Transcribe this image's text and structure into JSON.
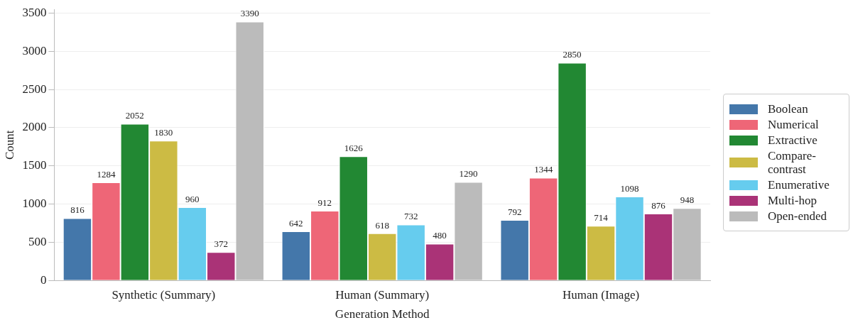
{
  "chart_data": {
    "type": "bar",
    "xlabel": "Generation Method",
    "ylabel": "Count",
    "categories": [
      "Synthetic (Summary)",
      "Human (Summary)",
      "Human (Image)"
    ],
    "series": [
      {
        "name": "Boolean",
        "color": "#4477aa",
        "values": [
          816,
          642,
          792
        ]
      },
      {
        "name": "Numerical",
        "color": "#ee6677",
        "values": [
          1284,
          912,
          1344
        ]
      },
      {
        "name": "Extractive",
        "color": "#228833",
        "values": [
          2052,
          1626,
          2850
        ]
      },
      {
        "name": "Compare-contrast",
        "color": "#ccbb44",
        "values": [
          1830,
          618,
          714
        ]
      },
      {
        "name": "Enumerative",
        "color": "#66ccee",
        "values": [
          960,
          732,
          1098
        ]
      },
      {
        "name": "Multi-hop",
        "color": "#aa3377",
        "values": [
          372,
          480,
          876
        ]
      },
      {
        "name": "Open-ended",
        "color": "#bbbbbb",
        "values": [
          3390,
          1290,
          948
        ]
      }
    ],
    "ylim": [
      0,
      3550
    ],
    "yticks": [
      0,
      500,
      1000,
      1500,
      2000,
      2500,
      3000,
      3500
    ],
    "grid": "y",
    "legend": "right",
    "data_labels": true
  }
}
